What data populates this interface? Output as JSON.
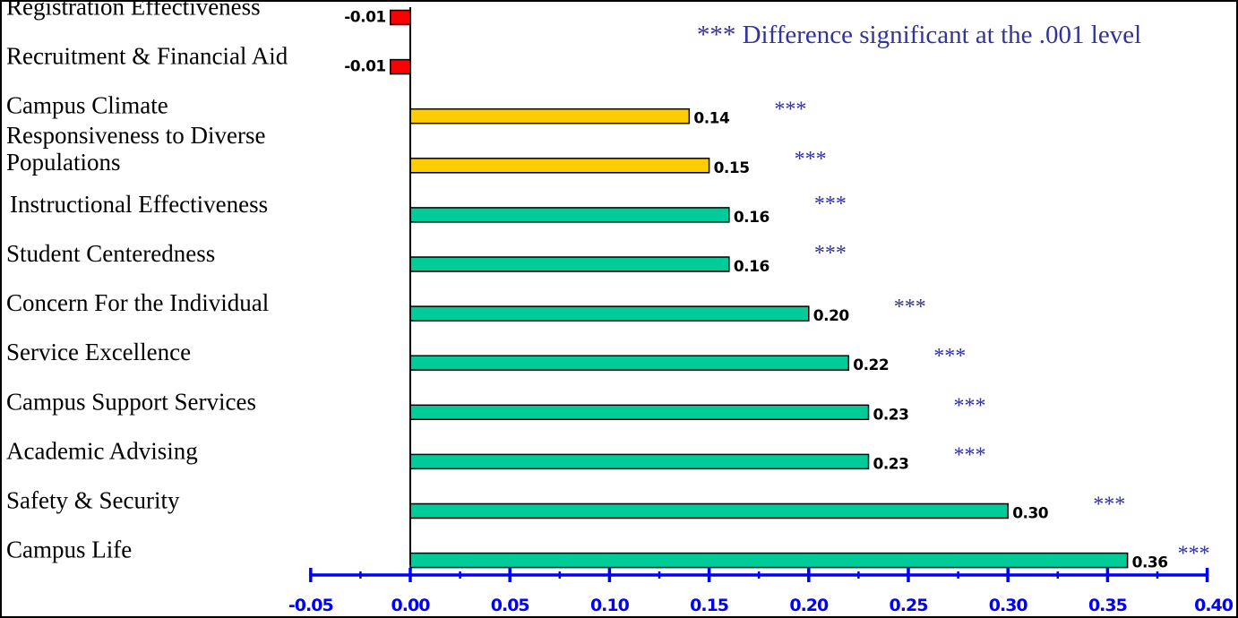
{
  "chart_data": {
    "type": "bar",
    "orientation": "horizontal",
    "title": "",
    "xlabel": "",
    "ylabel": "",
    "xlim": [
      -0.05,
      0.4
    ],
    "xticks": [
      "-0.05",
      "0.00",
      "0.05",
      "0.10",
      "0.15",
      "0.20",
      "0.25",
      "0.30",
      "0.35",
      "0.40"
    ],
    "grid": false,
    "legend": "none",
    "annotation": "*** Difference significant at the .001 level",
    "significance_marker": "***",
    "colors": {
      "negative": "#ff0000",
      "middle": "#ffcc00",
      "positive": "#00cc99",
      "axis": "#0000ff",
      "annotation": "#333399",
      "border": "#000000"
    },
    "categories": [
      {
        "label": [
          "Registration Effectiveness"
        ],
        "value": -0.01,
        "value_label": "-0.01",
        "color_group": "negative",
        "significant": false
      },
      {
        "label": [
          "Recruitment & Financial Aid"
        ],
        "value": -0.01,
        "value_label": "-0.01",
        "color_group": "negative",
        "significant": false
      },
      {
        "label": [
          "Campus Climate"
        ],
        "value": 0.14,
        "value_label": "0.14",
        "color_group": "middle",
        "significant": true
      },
      {
        "label": [
          "Responsiveness to Diverse",
          "Populations"
        ],
        "value": 0.15,
        "value_label": "0.15",
        "color_group": "middle",
        "significant": true
      },
      {
        "label": [
          "Instructional Effectiveness"
        ],
        "value": 0.16,
        "value_label": "0.16",
        "color_group": "positive",
        "significant": true
      },
      {
        "label": [
          "Student Centeredness"
        ],
        "value": 0.16,
        "value_label": "0.16",
        "color_group": "positive",
        "significant": true
      },
      {
        "label": [
          "Concern For the Individual"
        ],
        "value": 0.2,
        "value_label": "0.20",
        "color_group": "positive",
        "significant": true
      },
      {
        "label": [
          "Service Excellence"
        ],
        "value": 0.22,
        "value_label": "0.22",
        "color_group": "positive",
        "significant": true
      },
      {
        "label": [
          "Campus Support Services"
        ],
        "value": 0.23,
        "value_label": "0.23",
        "color_group": "positive",
        "significant": true
      },
      {
        "label": [
          "Academic Advising"
        ],
        "value": 0.23,
        "value_label": "0.23",
        "color_group": "positive",
        "significant": true
      },
      {
        "label": [
          "Safety & Security"
        ],
        "value": 0.3,
        "value_label": "0.30",
        "color_group": "positive",
        "significant": true
      },
      {
        "label": [
          "Campus Life"
        ],
        "value": 0.36,
        "value_label": "0.36",
        "color_group": "positive",
        "significant": true
      }
    ]
  }
}
